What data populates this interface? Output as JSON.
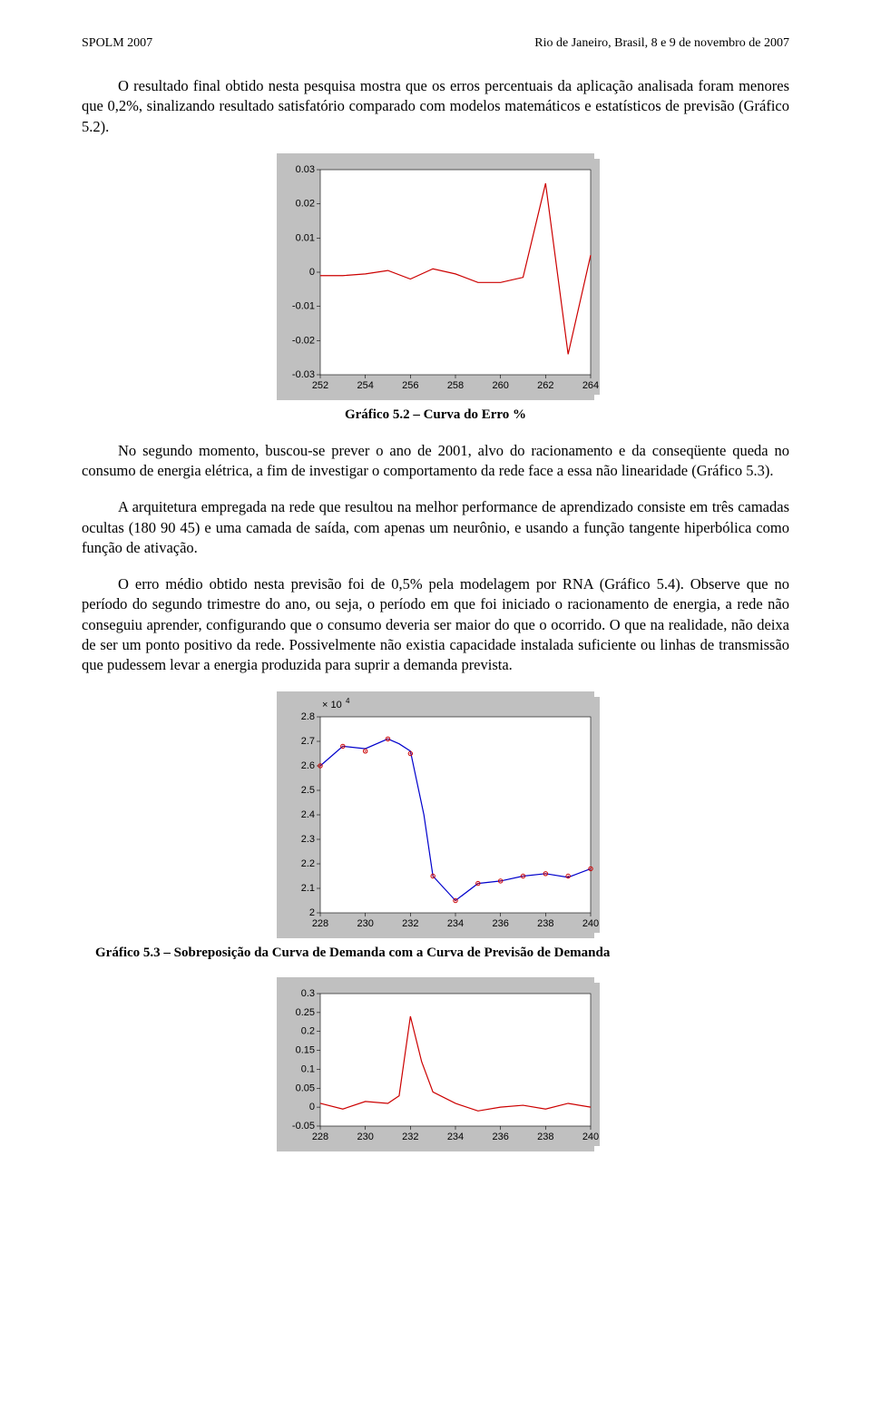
{
  "header": {
    "left": "SPOLM 2007",
    "right": "Rio de Janeiro, Brasil, 8 e 9 de novembro de 2007"
  },
  "para1": "O resultado final obtido nesta pesquisa mostra que os erros percentuais da aplicação analisada foram menores que 0,2%, sinalizando resultado satisfatório comparado com modelos matemáticos e estatísticos de previsão (Gráfico 5.2).",
  "chart1": {
    "caption": "Gráfico 5.2 – Curva do Erro %",
    "outer_w": 350,
    "outer_h": 260,
    "plot_bg": "#c0c0c0",
    "inner_bg": "#ffffff",
    "x_ticks": [
      252,
      254,
      256,
      258,
      260,
      262,
      264
    ],
    "y_ticks": [
      -0.03,
      -0.02,
      -0.01,
      0,
      0.01,
      0.02,
      0.03
    ],
    "xlim": [
      252,
      264
    ],
    "ylim": [
      -0.03,
      0.03
    ],
    "line_color": "#cc0000",
    "tick_color": "#000000",
    "font_size": 11,
    "series": [
      {
        "x": 252,
        "y": -0.001
      },
      {
        "x": 253,
        "y": -0.001
      },
      {
        "x": 254,
        "y": -0.0005
      },
      {
        "x": 255,
        "y": 0.0005
      },
      {
        "x": 256,
        "y": -0.002
      },
      {
        "x": 257,
        "y": 0.001
      },
      {
        "x": 258,
        "y": -0.0005
      },
      {
        "x": 259,
        "y": -0.003
      },
      {
        "x": 260,
        "y": -0.003
      },
      {
        "x": 261,
        "y": -0.0015
      },
      {
        "x": 262,
        "y": 0.026
      },
      {
        "x": 263,
        "y": -0.024
      },
      {
        "x": 264,
        "y": 0.005
      }
    ]
  },
  "para2": "No segundo momento, buscou-se prever o ano de 2001, alvo do racionamento e da conseqüente queda no consumo de energia elétrica, a fim de investigar o comportamento da rede face a essa não linearidade (Gráfico 5.3).",
  "para3": "A arquitetura empregada na rede que resultou na melhor performance de aprendizado consiste em três camadas ocultas (180 90 45) e uma camada de saída, com apenas um neurônio, e usando a função tangente hiperbólica como função de ativação.",
  "para4": "O erro médio obtido nesta previsão foi de 0,5% pela modelagem por RNA (Gráfico 5.4). Observe que no período do segundo trimestre do ano, ou seja, o período em que foi iniciado o racionamento de energia, a rede não conseguiu aprender, configurando que o consumo deveria ser maior do que o ocorrido. O que na realidade, não deixa de ser um ponto positivo da rede. Possivelmente não existia capacidade instalada suficiente ou linhas de transmissão que pudessem levar a energia produzida para suprir a demanda prevista.",
  "chart2": {
    "caption": "Gráfico 5.3 – Sobreposição da Curva de Demanda com a Curva de Previsão de Demanda",
    "outer_w": 350,
    "outer_h": 260,
    "plot_bg": "#c0c0c0",
    "inner_bg": "#ffffff",
    "x_ticks": [
      228,
      230,
      232,
      234,
      236,
      238,
      240
    ],
    "y_ticks": [
      2,
      2.1,
      2.2,
      2.3,
      2.4,
      2.5,
      2.6,
      2.7,
      2.8
    ],
    "xlim": [
      228,
      240
    ],
    "ylim": [
      2,
      2.8
    ],
    "y_exp": "× 10",
    "y_exp_sup": "4",
    "line_color": "#0000cc",
    "marker_color": "#cc0000",
    "font_size": 11,
    "series_line": [
      {
        "x": 228,
        "y": 2.6
      },
      {
        "x": 229,
        "y": 2.68
      },
      {
        "x": 230,
        "y": 2.67
      },
      {
        "x": 231,
        "y": 2.71
      },
      {
        "x": 231.5,
        "y": 2.69
      },
      {
        "x": 232,
        "y": 2.66
      },
      {
        "x": 232.6,
        "y": 2.4
      },
      {
        "x": 233,
        "y": 2.15
      },
      {
        "x": 234,
        "y": 2.05
      },
      {
        "x": 235,
        "y": 2.12
      },
      {
        "x": 236,
        "y": 2.13
      },
      {
        "x": 237,
        "y": 2.15
      },
      {
        "x": 238,
        "y": 2.16
      },
      {
        "x": 239,
        "y": 2.145
      },
      {
        "x": 240,
        "y": 2.18
      }
    ],
    "series_markers": [
      {
        "x": 228,
        "y": 2.6
      },
      {
        "x": 229,
        "y": 2.68
      },
      {
        "x": 230,
        "y": 2.66
      },
      {
        "x": 231,
        "y": 2.71
      },
      {
        "x": 232,
        "y": 2.65
      },
      {
        "x": 233,
        "y": 2.15
      },
      {
        "x": 234,
        "y": 2.05
      },
      {
        "x": 235,
        "y": 2.12
      },
      {
        "x": 236,
        "y": 2.13
      },
      {
        "x": 237,
        "y": 2.15
      },
      {
        "x": 238,
        "y": 2.16
      },
      {
        "x": 239,
        "y": 2.15
      },
      {
        "x": 240,
        "y": 2.18
      }
    ]
  },
  "chart3": {
    "outer_w": 350,
    "outer_h": 180,
    "plot_bg": "#c0c0c0",
    "inner_bg": "#ffffff",
    "x_ticks": [
      228,
      230,
      232,
      234,
      236,
      238,
      240
    ],
    "y_ticks": [
      -0.05,
      0,
      0.05,
      0.1,
      0.15,
      0.2,
      0.25,
      0.3
    ],
    "xlim": [
      228,
      240
    ],
    "ylim": [
      -0.05,
      0.3
    ],
    "line_color": "#cc0000",
    "font_size": 11,
    "series": [
      {
        "x": 228,
        "y": 0.01
      },
      {
        "x": 229,
        "y": -0.005
      },
      {
        "x": 230,
        "y": 0.015
      },
      {
        "x": 231,
        "y": 0.01
      },
      {
        "x": 231.5,
        "y": 0.03
      },
      {
        "x": 232,
        "y": 0.24
      },
      {
        "x": 232.5,
        "y": 0.12
      },
      {
        "x": 233,
        "y": 0.04
      },
      {
        "x": 234,
        "y": 0.01
      },
      {
        "x": 235,
        "y": -0.01
      },
      {
        "x": 236,
        "y": 0.0
      },
      {
        "x": 237,
        "y": 0.005
      },
      {
        "x": 238,
        "y": -0.005
      },
      {
        "x": 239,
        "y": 0.01
      },
      {
        "x": 240,
        "y": 0.0
      }
    ]
  }
}
